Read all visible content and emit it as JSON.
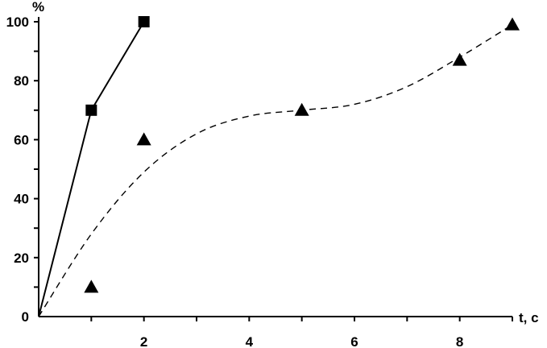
{
  "chart_data": {
    "type": "line",
    "title": "",
    "xlabel": "t, c",
    "ylabel": "%",
    "xlim": [
      0,
      9
    ],
    "ylim": [
      0,
      100
    ],
    "x_tick_labels": [
      2,
      4,
      6,
      8
    ],
    "y_tick_labels": [
      0,
      20,
      40,
      60,
      80,
      100
    ],
    "x_minor_ticks": [
      1,
      2,
      3,
      4,
      5,
      6,
      7,
      8,
      9
    ],
    "y_minor_ticks": [
      10,
      30,
      50,
      70,
      90
    ],
    "grid": false,
    "legend": "none",
    "series": [
      {
        "marker": "square",
        "line": "solid",
        "color": "#000000",
        "points": [
          {
            "x": 0,
            "y": 0,
            "marker": false
          },
          {
            "x": 1,
            "y": 70
          },
          {
            "x": 2,
            "y": 100
          }
        ]
      },
      {
        "marker": "triangle",
        "line": "none",
        "color": "#000000",
        "points": [
          {
            "x": 1,
            "y": 10
          },
          {
            "x": 2,
            "y": 60
          },
          {
            "x": 5,
            "y": 70
          },
          {
            "x": 8,
            "y": 87
          },
          {
            "x": 9,
            "y": 99
          }
        ]
      },
      {
        "marker": "none",
        "line": "dashed",
        "color": "#000000",
        "points": [
          {
            "x": 0,
            "y": 0
          },
          {
            "x": 1,
            "y": 28
          },
          {
            "x": 2,
            "y": 49
          },
          {
            "x": 3,
            "y": 62
          },
          {
            "x": 4,
            "y": 68
          },
          {
            "x": 5,
            "y": 70
          },
          {
            "x": 6,
            "y": 72
          },
          {
            "x": 7,
            "y": 78
          },
          {
            "x": 8,
            "y": 88
          },
          {
            "x": 9,
            "y": 99
          }
        ]
      }
    ]
  }
}
